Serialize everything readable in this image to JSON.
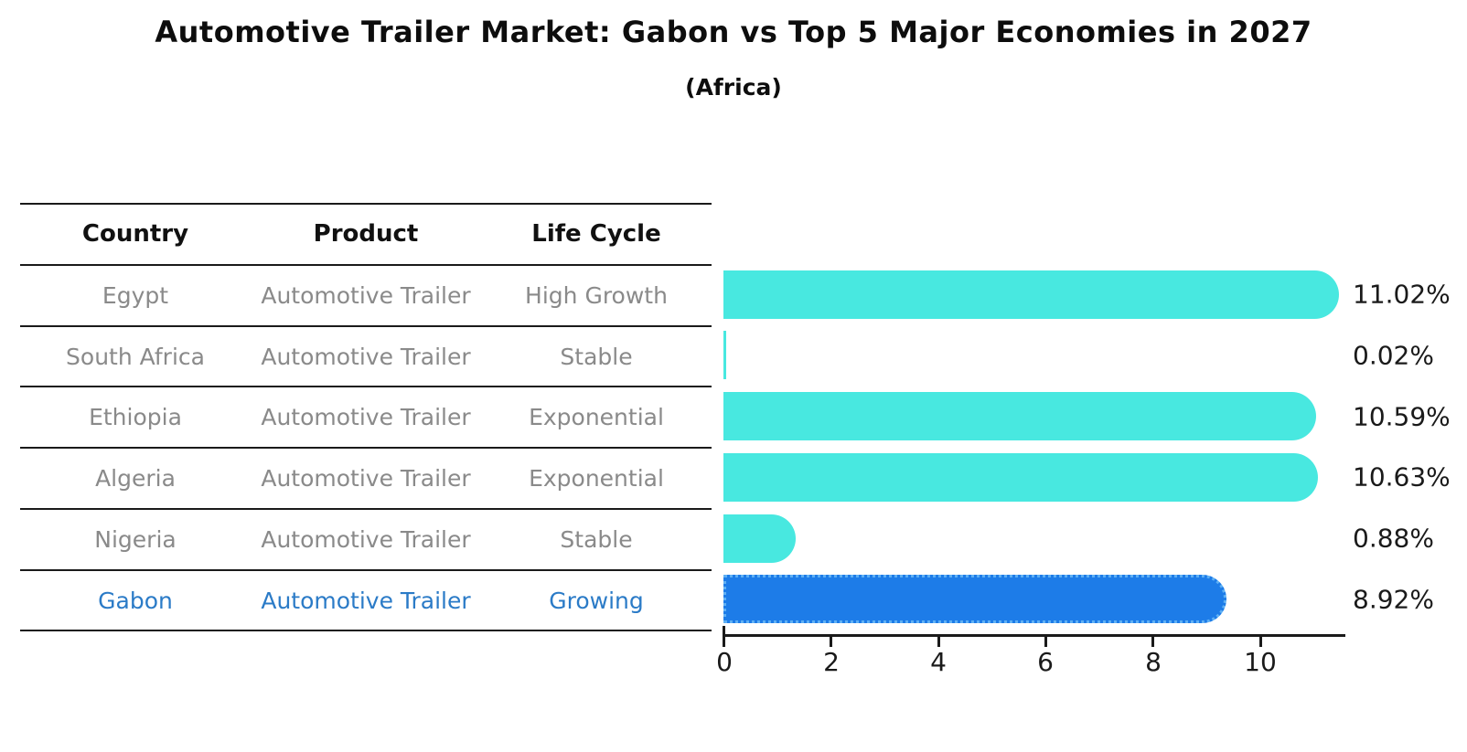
{
  "chart": {
    "title": "Automotive Trailer Market: Gabon vs Top 5 Major Economies in 2027",
    "subtitle": "(Africa)"
  },
  "table": {
    "headers": [
      "Country",
      "Product",
      "Life Cycle"
    ],
    "rows": [
      {
        "country": "Egypt",
        "product": "Automotive Trailer",
        "life_cycle": "High Growth",
        "highlight": false
      },
      {
        "country": "South Africa",
        "product": "Automotive Trailer",
        "life_cycle": "Stable",
        "highlight": false
      },
      {
        "country": "Ethiopia",
        "product": "Automotive Trailer",
        "life_cycle": "Exponential",
        "highlight": false
      },
      {
        "country": "Algeria",
        "product": "Automotive Trailer",
        "life_cycle": "Exponential",
        "highlight": false
      },
      {
        "country": "Nigeria",
        "product": "Automotive Trailer",
        "life_cycle": "Stable",
        "highlight": false
      },
      {
        "country": "Gabon",
        "product": "Automotive Trailer",
        "life_cycle": "Growing",
        "highlight": true
      }
    ]
  },
  "chart_data": {
    "type": "bar",
    "orientation": "horizontal",
    "title": "Automotive Trailer Market: Gabon vs Top 5 Major Economies in 2027",
    "subtitle": "(Africa)",
    "categories": [
      "Egypt",
      "South Africa",
      "Ethiopia",
      "Algeria",
      "Nigeria",
      "Gabon"
    ],
    "values": [
      11.02,
      0.02,
      10.59,
      10.63,
      0.88,
      8.92
    ],
    "value_labels": [
      "11.02%",
      "0.02%",
      "10.59%",
      "10.63%",
      "0.88%",
      "8.92%"
    ],
    "x_ticks": [
      "0",
      "2",
      "4",
      "6",
      "8",
      "10"
    ],
    "x_tick_values": [
      0,
      2,
      4,
      6,
      8,
      10
    ],
    "xlim": [
      0,
      11.6
    ],
    "grid": false,
    "legend": false,
    "bar_color": "#48e8e0",
    "highlight_color": "#1d7ce8",
    "highlight_border_color": "#5fb0f4",
    "highlight_index": 5
  }
}
